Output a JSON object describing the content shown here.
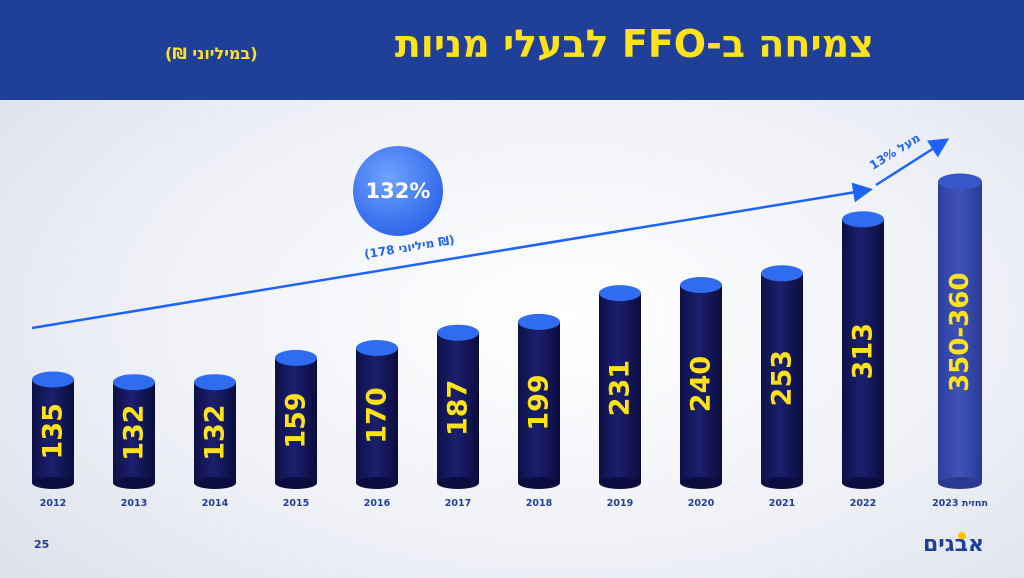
{
  "header": {
    "title": "צמיחה ב-FFO לבעלי מניות",
    "subtitle": "(במיליוני ₪)"
  },
  "footer": {
    "page_number": "25",
    "logo_text": "אבגים"
  },
  "colors": {
    "header_bg": "#1f3f98",
    "title": "#ffe21a",
    "bar": "#1b1f6e",
    "bar_top": "#2f6cf0",
    "forecast_bar": "#3f53b8",
    "arrow": "#1e63ff"
  },
  "annotations": {
    "growth_pct": "132%",
    "growth_abs": "(178 מיליוני ₪)",
    "forecast_growth": "מעל 13%"
  },
  "chart_data": {
    "type": "bar",
    "title": "צמיחה ב-FFO לבעלי מניות",
    "subtitle": "(במיליוני ₪)",
    "categories": [
      "2012",
      "2013",
      "2014",
      "2015",
      "2016",
      "2017",
      "2018",
      "2019",
      "2020",
      "2021",
      "2022",
      "תחזית 2023"
    ],
    "values": [
      135,
      132,
      132,
      159,
      170,
      187,
      199,
      231,
      240,
      253,
      313,
      355
    ],
    "labels": [
      "135",
      "132",
      "132",
      "159",
      "170",
      "187",
      "199",
      "231",
      "240",
      "253",
      "313",
      "350-360"
    ],
    "forecast_range": [
      350,
      360
    ],
    "ylim": [
      0,
      360
    ],
    "grid": false,
    "legend": "none"
  }
}
